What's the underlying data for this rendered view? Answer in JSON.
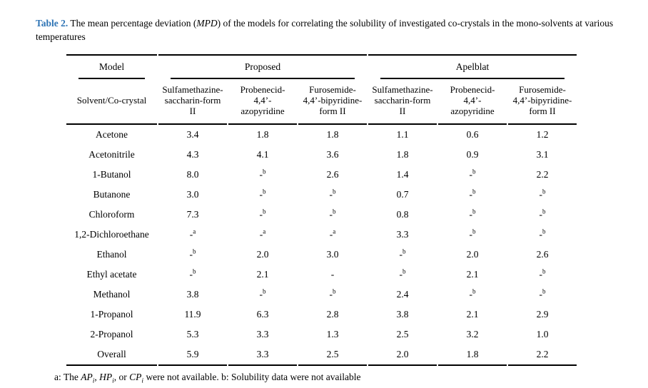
{
  "page": {
    "background": "#ffffff",
    "text_color": "#000000",
    "accent_blue": "#2e74b5"
  },
  "caption": {
    "label": "Table 2.",
    "part1": " The mean percentage deviation (",
    "italic_term": "MPD",
    "part2a": ") of the models for correlating the solubility of investigated co-crystals in the mono-solvents at various",
    "part2b": "temperatures"
  },
  "table": {
    "header": {
      "model_label": "Model",
      "solvent_label": "Solvent/Co-crystal",
      "groups": [
        {
          "label": "Proposed",
          "columns": [
            "Sulfamethazine-\nsaccharin-form\nII",
            "Probenecid-\n4,4’-\nazopyridine",
            "Furosemide-\n4,4’-bipyridine-\nform II"
          ]
        },
        {
          "label": "Apelblat",
          "columns": [
            "Sulfamethazine-\nsaccharin-form\nII",
            "Probenecid-\n4,4’-\nazopyridine",
            "Furosemide-\n4,4’-bipyridine-\nform II"
          ]
        }
      ]
    },
    "rows": [
      {
        "solvent": "Acetone",
        "values": [
          "3.4",
          "1.8",
          "1.8",
          "1.1",
          "0.6",
          "1.2"
        ]
      },
      {
        "solvent": "Acetonitrile",
        "values": [
          "4.3",
          "4.1",
          "3.6",
          "1.8",
          "0.9",
          "3.1"
        ]
      },
      {
        "solvent": "1-Butanol",
        "values": [
          "8.0",
          "-^b",
          "2.6",
          "1.4",
          "-^b",
          "2.2"
        ]
      },
      {
        "solvent": "Butanone",
        "values": [
          "3.0",
          "-^b",
          "-^b",
          "0.7",
          "-^b",
          "-^b"
        ]
      },
      {
        "solvent": "Chloroform",
        "values": [
          "7.3",
          "-^b",
          "-^b",
          "0.8",
          "-^b",
          "-^b"
        ]
      },
      {
        "solvent": "1,2-Dichloroethane",
        "values": [
          "-^a",
          "-^a",
          "-^a",
          "3.3",
          "-^b",
          "-^b"
        ]
      },
      {
        "solvent": "Ethanol",
        "values": [
          "-^b",
          "2.0",
          "3.0",
          "-^b",
          "2.0",
          "2.6"
        ]
      },
      {
        "solvent": "Ethyl acetate",
        "values": [
          "-^b",
          "2.1",
          "-",
          "-^b",
          "2.1",
          "-^b"
        ]
      },
      {
        "solvent": "Methanol",
        "values": [
          "3.8",
          "-^b",
          "-^b",
          "2.4",
          "-^b",
          "-^b"
        ]
      },
      {
        "solvent": "1-Propanol",
        "values": [
          "11.9",
          "6.3",
          "2.8",
          "3.8",
          "2.1",
          "2.9"
        ]
      },
      {
        "solvent": "2-Propanol",
        "values": [
          "5.3",
          "3.3",
          "1.3",
          "2.5",
          "3.2",
          "1.0"
        ]
      },
      {
        "solvent": "Overall",
        "values": [
          "5.9",
          "3.3",
          "2.5",
          "2.0",
          "1.8",
          "2.2"
        ]
      }
    ]
  },
  "footnote": {
    "part1": "a: The ",
    "term1": "AP",
    "sub1": "i",
    "part2": ", ",
    "term2": "HP",
    "sub2": "i",
    "part3": ", or ",
    "term3": "CP",
    "sub3": "i",
    "part4": " were not available. b: Solubility data were not available"
  }
}
